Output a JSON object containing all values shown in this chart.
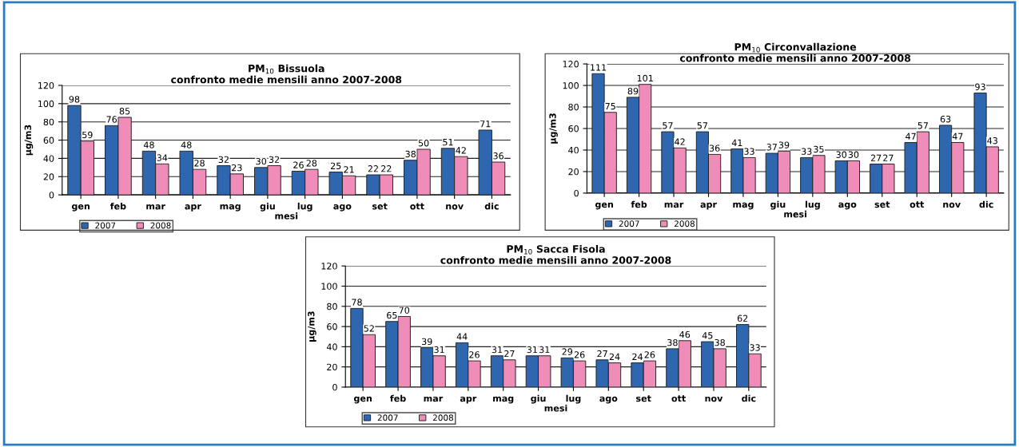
{
  "chart_data": [
    {
      "type": "bar",
      "title": "PM$_{10}$ Bissuola\nconfronto medie mensili anno 2007-2008",
      "xlabel": "mesi",
      "ylabel": "µg/m3",
      "categories": [
        "gen",
        "feb",
        "mar",
        "apr",
        "mag",
        "giu",
        "lug",
        "ago",
        "set",
        "ott",
        "nov",
        "dic"
      ],
      "series": [
        {
          "name": "2007",
          "color": "#2e66b0",
          "values": [
            98,
            76,
            48,
            48,
            32,
            30,
            26,
            25,
            22,
            38,
            51,
            71
          ]
        },
        {
          "name": "2008",
          "color": "#f08cb8",
          "values": [
            59,
            85,
            34,
            28,
            23,
            32,
            28,
            21,
            22,
            50,
            42,
            36
          ]
        }
      ],
      "ylim": [
        0,
        120
      ],
      "yticks": [
        0,
        20,
        40,
        60,
        80,
        100,
        120
      ],
      "grid": "y",
      "legend": "bottom left",
      "data_labels": true
    },
    {
      "type": "bar",
      "title": "PM$_{10}$ Circonvallazione\nconfronto medie mensili anno 2007-2008",
      "xlabel": "mesi",
      "ylabel": "µg/m3",
      "categories": [
        "gen",
        "feb",
        "mar",
        "apr",
        "mag",
        "giu",
        "lug",
        "ago",
        "set",
        "ott",
        "nov",
        "dic"
      ],
      "series": [
        {
          "name": "2007",
          "color": "#2e66b0",
          "values": [
            111,
            89,
            57,
            57,
            41,
            37,
            33,
            30,
            27,
            47,
            63,
            93
          ]
        },
        {
          "name": "2008",
          "color": "#f08cb8",
          "values": [
            75,
            101,
            42,
            36,
            33,
            39,
            35,
            30,
            27,
            57,
            47,
            43
          ]
        }
      ],
      "ylim": [
        0,
        120
      ],
      "yticks": [
        0,
        20,
        40,
        60,
        80,
        100,
        120
      ],
      "grid": "y",
      "legend": "bottom left",
      "data_labels": true
    },
    {
      "type": "bar",
      "title": "PM$_{10}$ Sacca Fisola\nconfronto medie mensili anno 2007-2008",
      "xlabel": "mesi",
      "ylabel": "µg/m3",
      "categories": [
        "gen",
        "feb",
        "mar",
        "apr",
        "mag",
        "giu",
        "lug",
        "ago",
        "set",
        "ott",
        "nov",
        "dic"
      ],
      "series": [
        {
          "name": "2007",
          "color": "#2e66b0",
          "values": [
            78,
            65,
            39,
            44,
            31,
            31,
            29,
            27,
            24,
            38,
            45,
            62
          ]
        },
        {
          "name": "2008",
          "color": "#f08cb8",
          "values": [
            52,
            70,
            31,
            26,
            27,
            31,
            26,
            24,
            26,
            46,
            38,
            33
          ]
        }
      ],
      "ylim": [
        0,
        120
      ],
      "yticks": [
        0,
        20,
        40,
        60,
        80,
        100,
        120
      ],
      "grid": "y",
      "legend": "bottom left",
      "data_labels": true
    }
  ]
}
